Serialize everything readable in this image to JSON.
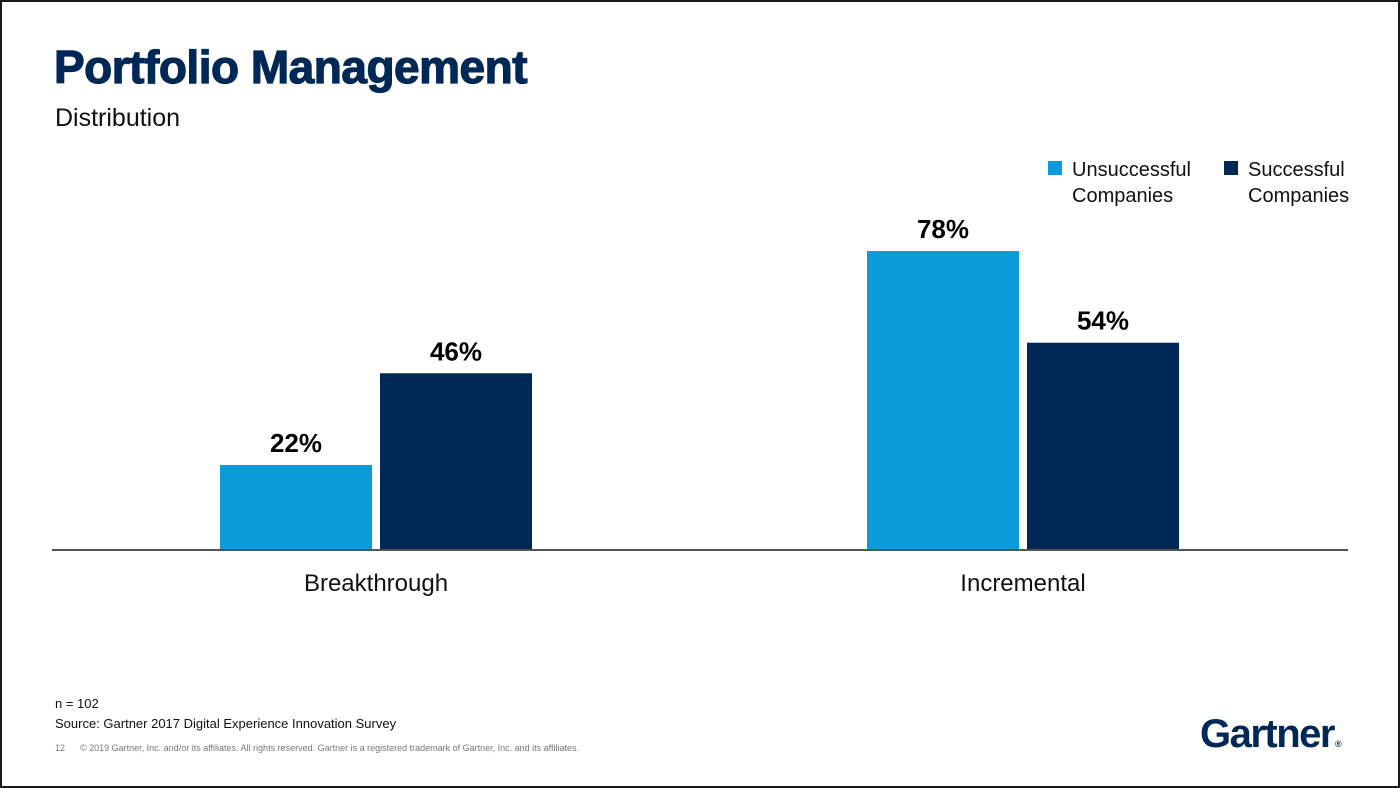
{
  "slide": {
    "title": "Portfolio Management",
    "subtitle": "Distribution",
    "footer": {
      "n": "n = 102",
      "source": "Source: Gartner 2017 Digital Experience Innovation Survey",
      "page_number": "12",
      "copyright": "© 2019 Gartner, Inc. and/or its affiliates. All rights reserved. Gartner is a registered trademark of Gartner, Inc. and its affiliates."
    },
    "logo": {
      "text": "Gartner",
      "mark": "®"
    }
  },
  "chart_data": {
    "type": "bar",
    "title": "Portfolio Management",
    "subtitle": "Distribution",
    "categories": [
      "Breakthrough",
      "Incremental"
    ],
    "series": [
      {
        "name": "Unsuccessful Companies",
        "values": [
          22,
          78
        ],
        "labels": [
          "22%",
          "78%"
        ],
        "color": "#0a9bd8"
      },
      {
        "name": "Successful Companies",
        "values": [
          46,
          54
        ],
        "labels": [
          "46%",
          "54%"
        ],
        "color": "#002856"
      }
    ],
    "value_unit": "%",
    "ylim": [
      0,
      100
    ],
    "grid": false,
    "legend": {
      "placement": "top-right",
      "items": [
        "Unsuccessful Companies",
        "Successful Companies"
      ]
    },
    "colors": {
      "axis": "#555555",
      "label": "#000000",
      "category_label": "#111111"
    }
  }
}
